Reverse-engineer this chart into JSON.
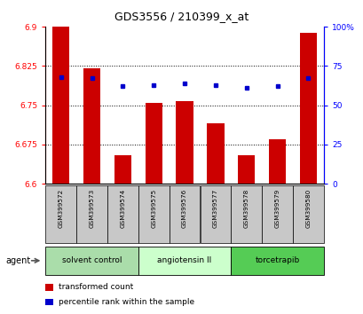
{
  "title": "GDS3556 / 210399_x_at",
  "samples": [
    "GSM399572",
    "GSM399573",
    "GSM399574",
    "GSM399575",
    "GSM399576",
    "GSM399577",
    "GSM399578",
    "GSM399579",
    "GSM399580"
  ],
  "transformed_counts": [
    6.9,
    6.82,
    6.655,
    6.755,
    6.758,
    6.715,
    6.655,
    6.685,
    6.888
  ],
  "percentile_ranks": [
    68,
    67,
    62,
    63,
    64,
    63,
    61,
    62,
    67
  ],
  "ylim_left": [
    6.6,
    6.9
  ],
  "ylim_right": [
    0,
    100
  ],
  "yticks_left": [
    6.6,
    6.675,
    6.75,
    6.825,
    6.9
  ],
  "yticks_right": [
    0,
    25,
    50,
    75,
    100
  ],
  "ytick_labels_left": [
    "6.6",
    "6.675",
    "6.75",
    "6.825",
    "6.9"
  ],
  "ytick_labels_right": [
    "0",
    "25",
    "50",
    "75",
    "100%"
  ],
  "bar_color": "#cc0000",
  "dot_color": "#0000cc",
  "bar_width": 0.55,
  "groups": [
    {
      "label": "solvent control",
      "samples": [
        0,
        1,
        2
      ],
      "color": "#aaddaa"
    },
    {
      "label": "angiotensin II",
      "samples": [
        3,
        4,
        5
      ],
      "color": "#ccffcc"
    },
    {
      "label": "torcetrapib",
      "samples": [
        6,
        7,
        8
      ],
      "color": "#55cc55"
    }
  ],
  "agent_label": "agent",
  "legend_items": [
    {
      "color": "#cc0000",
      "label": "transformed count"
    },
    {
      "color": "#0000cc",
      "label": "percentile rank within the sample"
    }
  ],
  "background_xtick": "#c8c8c8",
  "title_fontsize": 9
}
